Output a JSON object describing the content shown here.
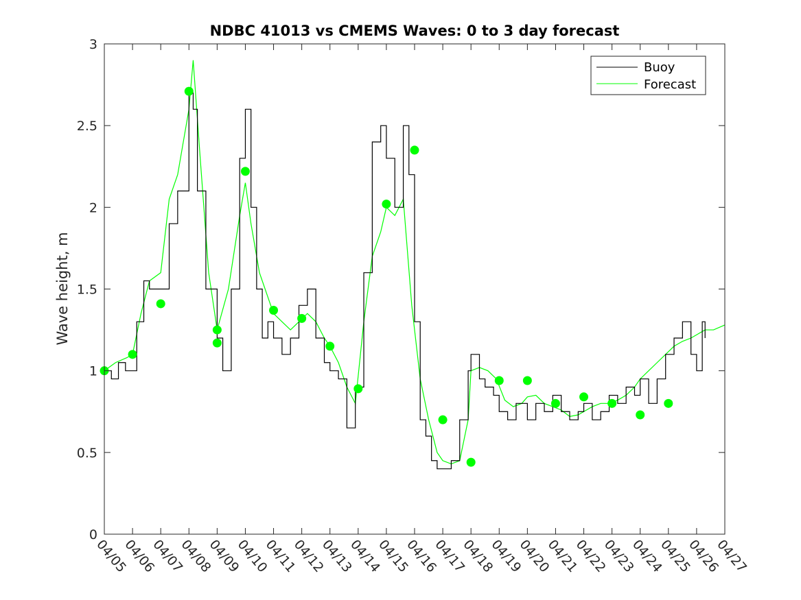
{
  "chart_data": {
    "type": "line",
    "title": "NDBC 41013 vs CMEMS Waves: 0 to 3 day forecast",
    "xlabel": "",
    "ylabel": "Wave height, m",
    "x_ticks": [
      "04/05",
      "04/06",
      "04/07",
      "04/08",
      "04/09",
      "04/10",
      "04/11",
      "04/12",
      "04/13",
      "04/14",
      "04/15",
      "04/16",
      "04/17",
      "04/18",
      "04/19",
      "04/20",
      "04/21",
      "04/22",
      "04/23",
      "04/24",
      "04/25",
      "04/26",
      "04/27"
    ],
    "xlim": [
      0,
      22
    ],
    "ylim": [
      0,
      3
    ],
    "y_ticks": [
      0,
      0.5,
      1,
      1.5,
      2,
      2.5,
      3
    ],
    "y_tick_labels": [
      "0",
      "0.5",
      "1",
      "1.5",
      "2",
      "2.5",
      "3"
    ],
    "grid": false,
    "legend": {
      "placement": "top-right",
      "entries": [
        "Buoy",
        "Forecast"
      ]
    },
    "colors": {
      "buoy": "#000000",
      "forecast": "#00ff00"
    },
    "series": [
      {
        "name": "Buoy",
        "x": [
          0,
          0.25,
          0.5,
          0.75,
          1,
          1.15,
          1.4,
          1.6,
          2,
          2.3,
          2.6,
          3,
          3.15,
          3.3,
          3.6,
          4,
          4.2,
          4.5,
          4.8,
          5,
          5.2,
          5.4,
          5.6,
          5.8,
          6,
          6.3,
          6.6,
          6.9,
          7.2,
          7.5,
          7.8,
          8,
          8.3,
          8.6,
          8.9,
          9.2,
          9.5,
          9.8,
          10,
          10.3,
          10.6,
          10.8,
          11,
          11.2,
          11.4,
          11.6,
          11.8,
          12,
          12.3,
          12.6,
          12.9,
          13,
          13.3,
          13.5,
          13.8,
          14,
          14.3,
          14.6,
          15,
          15.3,
          15.6,
          15.9,
          16.2,
          16.5,
          16.8,
          17,
          17.3,
          17.6,
          17.9,
          18.2,
          18.5,
          18.8,
          19,
          19.3,
          19.6,
          19.9,
          20.2,
          20.5,
          20.8,
          21,
          21.2,
          21.3
        ],
        "y": [
          1.0,
          0.95,
          1.05,
          1.0,
          1.0,
          1.3,
          1.55,
          1.5,
          1.5,
          1.9,
          2.1,
          2.7,
          2.6,
          2.1,
          1.5,
          1.2,
          1.0,
          1.5,
          2.3,
          2.6,
          2.0,
          1.5,
          1.2,
          1.3,
          1.2,
          1.1,
          1.2,
          1.4,
          1.5,
          1.2,
          1.05,
          1.0,
          0.95,
          0.65,
          0.9,
          1.6,
          2.4,
          2.5,
          2.3,
          2.0,
          2.5,
          2.2,
          1.3,
          0.7,
          0.6,
          0.45,
          0.4,
          0.4,
          0.45,
          0.7,
          1.0,
          1.1,
          0.95,
          0.9,
          0.85,
          0.75,
          0.7,
          0.8,
          0.7,
          0.8,
          0.75,
          0.85,
          0.75,
          0.7,
          0.75,
          0.8,
          0.7,
          0.75,
          0.85,
          0.8,
          0.9,
          0.85,
          0.95,
          0.8,
          0.95,
          1.1,
          1.2,
          1.3,
          1.1,
          1.0,
          1.3,
          1.2
        ]
      },
      {
        "name": "Forecast",
        "x": [
          0,
          0.4,
          0.8,
          1,
          1.3,
          1.6,
          2,
          2.3,
          2.6,
          3,
          3.15,
          3.4,
          3.7,
          4,
          4.4,
          4.8,
          5,
          5.2,
          5.5,
          5.8,
          6,
          6.3,
          6.6,
          6.9,
          7.2,
          7.5,
          7.8,
          8,
          8.3,
          8.6,
          8.9,
          9.2,
          9.5,
          9.8,
          10,
          10.3,
          10.6,
          10.9,
          11.2,
          11.5,
          11.8,
          12,
          12.3,
          12.6,
          12.9,
          13,
          13.3,
          13.6,
          13.9,
          14.2,
          14.5,
          14.8,
          15,
          15.3,
          15.6,
          15.9,
          16.2,
          16.5,
          16.8,
          17,
          17.3,
          17.6,
          17.9,
          18.2,
          18.5,
          18.8,
          19,
          19.3,
          19.6,
          19.9,
          20.2,
          20.5,
          20.8,
          21,
          21.3,
          21.6,
          22
        ],
        "y": [
          1.0,
          1.05,
          1.08,
          1.1,
          1.35,
          1.55,
          1.6,
          2.05,
          2.2,
          2.6,
          2.9,
          2.3,
          1.6,
          1.25,
          1.5,
          1.95,
          2.15,
          1.9,
          1.6,
          1.45,
          1.35,
          1.3,
          1.25,
          1.3,
          1.35,
          1.3,
          1.2,
          1.15,
          1.05,
          0.9,
          0.8,
          1.3,
          1.7,
          1.85,
          2.0,
          1.95,
          2.05,
          1.4,
          0.95,
          0.7,
          0.5,
          0.45,
          0.43,
          0.45,
          0.7,
          1.0,
          1.02,
          1.0,
          0.95,
          0.82,
          0.78,
          0.8,
          0.84,
          0.85,
          0.8,
          0.78,
          0.76,
          0.72,
          0.73,
          0.75,
          0.78,
          0.8,
          0.8,
          0.82,
          0.85,
          0.9,
          0.95,
          1.0,
          1.05,
          1.1,
          1.15,
          1.18,
          1.2,
          1.22,
          1.25,
          1.25,
          1.28
        ]
      }
    ],
    "markers": {
      "color": "#00ff00",
      "x": [
        0,
        1,
        2,
        3,
        4,
        4,
        5,
        6,
        7,
        8,
        9,
        10,
        11,
        12,
        13,
        14,
        15,
        16,
        17,
        18,
        19,
        20
      ],
      "y": [
        1.0,
        1.1,
        1.41,
        2.71,
        1.25,
        1.17,
        2.22,
        1.37,
        1.32,
        1.15,
        0.89,
        2.02,
        2.35,
        0.7,
        0.44,
        0.94,
        0.94,
        0.8,
        0.84,
        0.8,
        0.73,
        0.8
      ]
    }
  }
}
